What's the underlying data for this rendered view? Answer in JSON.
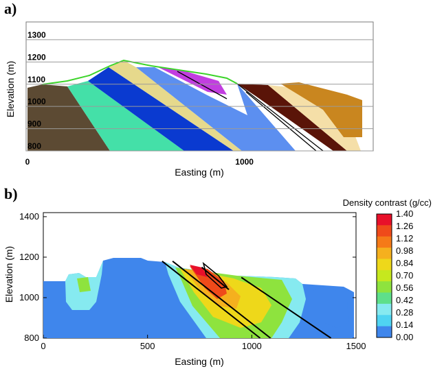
{
  "chart_data": [
    {
      "panel": "a)",
      "type": "area",
      "xlabel": "Easting (m)",
      "ylabel": "Elevation (m)",
      "x_ticks": [
        "0",
        "1000"
      ],
      "y_ticks": [
        "800",
        "900",
        "1000",
        "1100",
        "1200",
        "1300"
      ],
      "xlim": [
        0,
        1600
      ],
      "ylim": [
        800,
        1380
      ],
      "grid": "horizontal",
      "layer_colors": [
        "#5c4a33",
        "#44e0a8",
        "#0a3ad0",
        "#e6d98c",
        "#5c8ff0",
        "#c23ee0",
        "#5a1408",
        "#f5dfa8",
        "#c9861f"
      ]
    },
    {
      "panel": "b)",
      "type": "heatmap",
      "xlabel": "Easting (m)",
      "ylabel": "Elevation (m)",
      "x_ticks": [
        "0",
        "500",
        "1000",
        "1500"
      ],
      "y_ticks": [
        "800",
        "1000",
        "1200",
        "1400"
      ],
      "xlim": [
        0,
        1500
      ],
      "ylim": [
        800,
        1420
      ],
      "colorbar_title": "Density contrast (g/cc)",
      "colorbar_ticks": [
        "1.40",
        "1.26",
        "1.12",
        "0.98",
        "0.84",
        "0.70",
        "0.56",
        "0.42",
        "0.28",
        "0.14",
        "0.00"
      ],
      "colorbar_colors": [
        "#e8102a",
        "#ef4a1a",
        "#f57a18",
        "#f5b01e",
        "#eed81a",
        "#c6e81e",
        "#8ee33e",
        "#5edf8a",
        "#86eaf0",
        "#4fd4f2",
        "#3f86ec"
      ],
      "fault_lines": [
        [
          [
            570,
            1180
          ],
          [
            1040,
            800
          ]
        ],
        [
          [
            620,
            1180
          ],
          [
            1090,
            800
          ]
        ],
        [
          [
            950,
            1100
          ],
          [
            1380,
            800
          ]
        ],
        [
          [
            760,
            1150
          ],
          [
            890,
            1040
          ]
        ]
      ]
    }
  ]
}
